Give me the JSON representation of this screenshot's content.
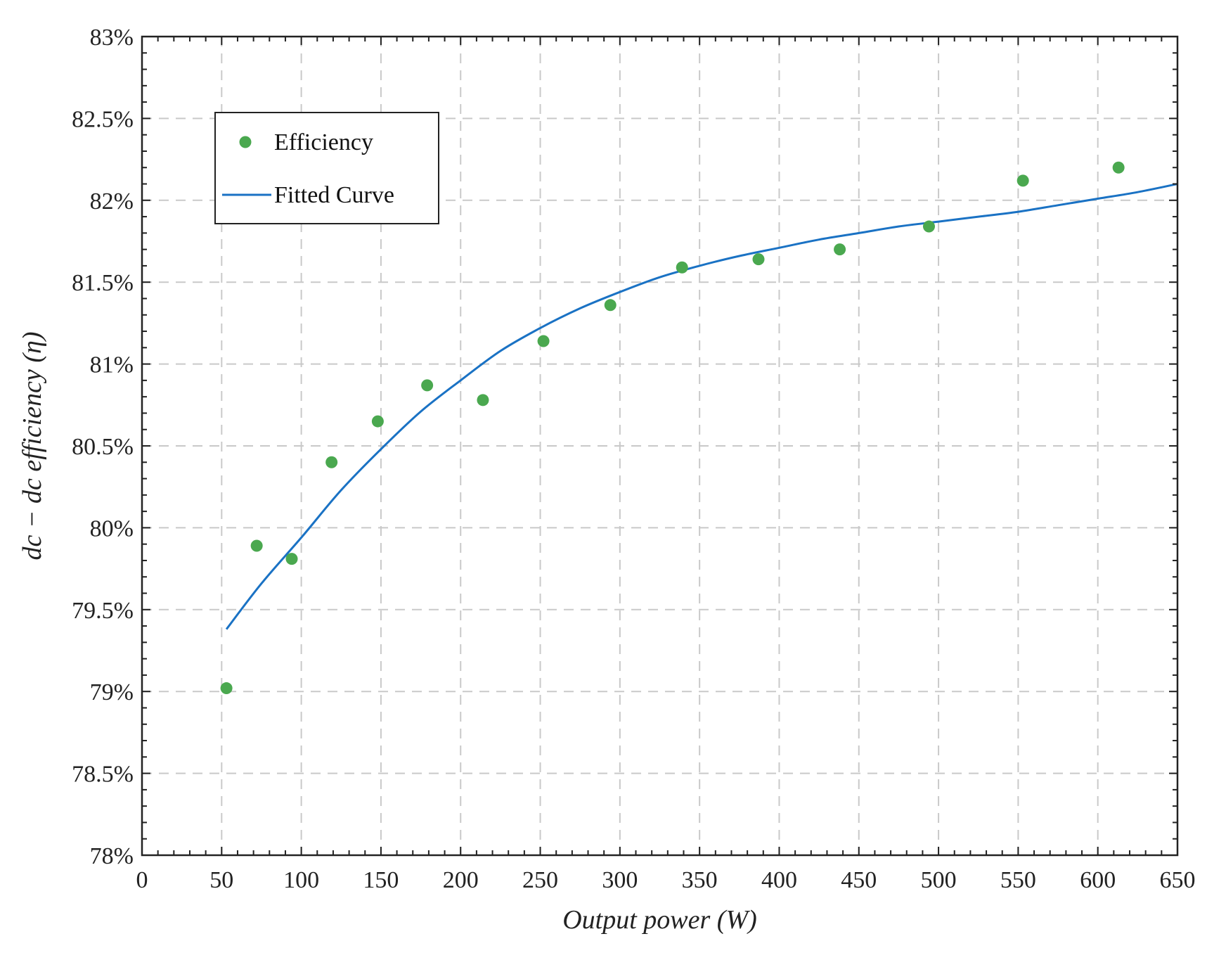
{
  "chart_data": {
    "type": "scatter",
    "title": "",
    "xlabel": "Output power  (W)",
    "ylabel": "dc − dc efficiency  (η)",
    "xlim": [
      0,
      650
    ],
    "ylim": [
      78,
      83
    ],
    "x_ticks": [
      0,
      50,
      100,
      150,
      200,
      250,
      300,
      350,
      400,
      450,
      500,
      550,
      600,
      650
    ],
    "x_tick_labels": [
      "0",
      "50",
      "100",
      "150",
      "200",
      "250",
      "300",
      "350",
      "400",
      "450",
      "500",
      "550",
      "600",
      "650"
    ],
    "y_ticks": [
      78,
      78.5,
      79,
      79.5,
      80,
      80.5,
      81,
      81.5,
      82,
      82.5,
      83
    ],
    "y_tick_labels": [
      "78%",
      "78.5%",
      "79%",
      "79.5%",
      "80%",
      "80.5%",
      "81%",
      "81.5%",
      "82%",
      "82.5%",
      "83%"
    ],
    "grid": true,
    "legend_position": "top-left",
    "series": [
      {
        "name": "Efficiency",
        "kind": "scatter",
        "color": "#4aa84f",
        "x": [
          53,
          72,
          94,
          119,
          148,
          179,
          214,
          252,
          294,
          339,
          387,
          438,
          494,
          553,
          613
        ],
        "y": [
          79.02,
          79.89,
          79.81,
          80.4,
          80.65,
          80.87,
          80.78,
          81.14,
          81.36,
          81.59,
          81.64,
          81.7,
          81.84,
          82.12,
          82.2
        ]
      },
      {
        "name": "Fitted Curve",
        "kind": "line",
        "color": "#1a72c4",
        "x": [
          53,
          75,
          100,
          125,
          150,
          175,
          200,
          225,
          250,
          275,
          300,
          325,
          350,
          375,
          400,
          425,
          450,
          475,
          500,
          525,
          550,
          575,
          600,
          625,
          650
        ],
        "y": [
          79.38,
          79.66,
          79.94,
          80.23,
          80.48,
          80.71,
          80.9,
          81.08,
          81.22,
          81.34,
          81.44,
          81.53,
          81.6,
          81.66,
          81.71,
          81.76,
          81.8,
          81.84,
          81.87,
          81.9,
          81.93,
          81.97,
          82.01,
          82.05,
          82.1
        ]
      }
    ]
  }
}
